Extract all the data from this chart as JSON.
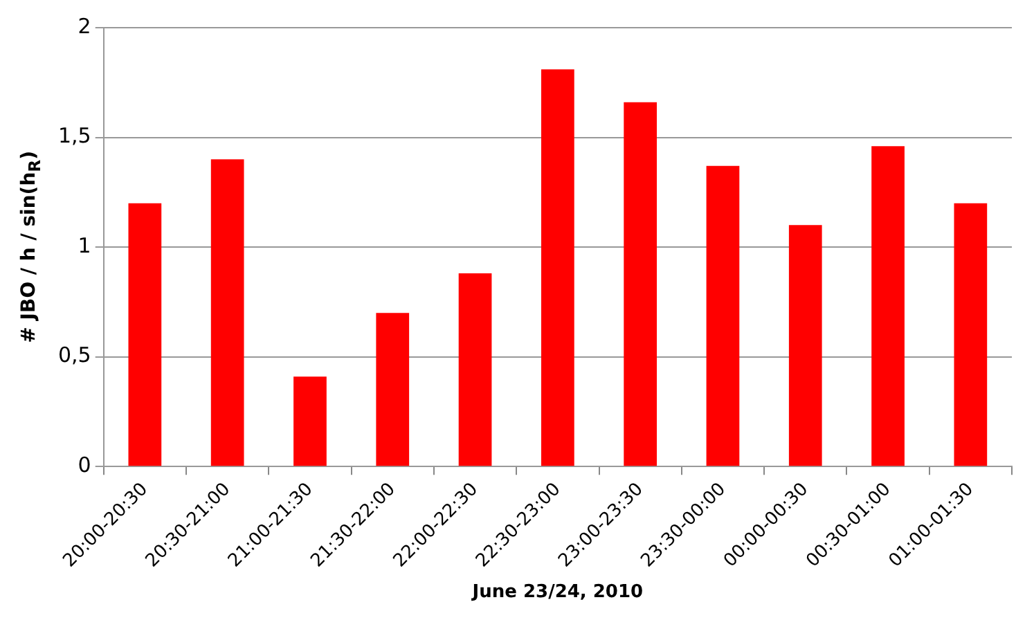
{
  "chart_data": {
    "type": "bar",
    "xlabel": "June 23/24, 2010",
    "ylabel": "# JBO / h / sin(h$_{R}$)",
    "categories": [
      "20:00-20:30",
      "20:30-21:00",
      "21:00-21:30",
      "21:30-22:00",
      "22:00-22:30",
      "22:30-23:00",
      "23:00-23:30",
      "23:30-00:00",
      "00:00-00:30",
      "00:30-01:00",
      "01:00-01:30"
    ],
    "values": [
      1.2,
      1.4,
      0.41,
      0.7,
      0.88,
      1.81,
      1.66,
      1.37,
      1.1,
      1.46,
      1.2
    ],
    "color": "#ff0000",
    "ylim": [
      0,
      2
    ],
    "yticks": [
      0,
      {
        "value": 0.5,
        "label": "0,5"
      },
      1,
      {
        "value": 1.5,
        "label": "1,5"
      },
      2
    ],
    "grid": "y",
    "legend": false
  }
}
